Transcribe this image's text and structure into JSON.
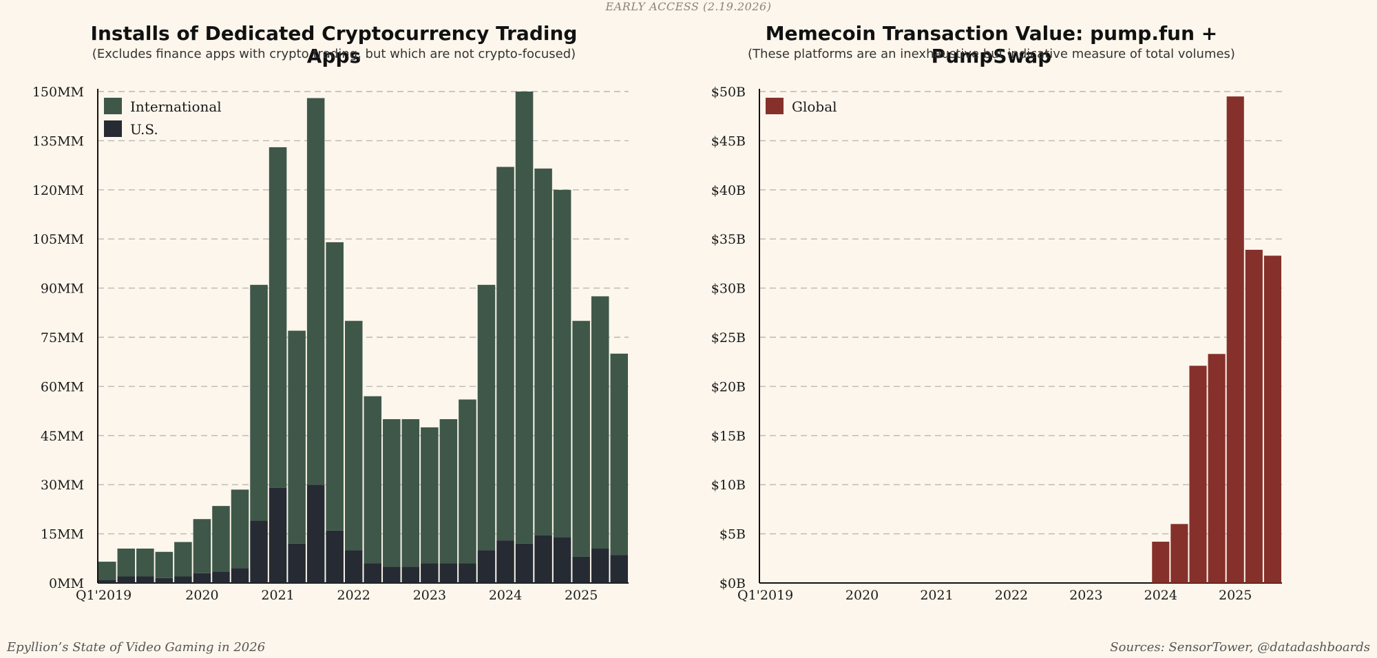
{
  "header": {
    "early_access": "EARLY ACCESS (2.19.2026)"
  },
  "footer": {
    "left": "Epyllion’s State of Video Gaming in 2026",
    "right": "Sources: SensorTower, @datadashboards"
  },
  "colors": {
    "international": "#3e5749",
    "us": "#252a33",
    "global": "#85302b",
    "grid": "#b8b8b0",
    "background": "#fcf6ec"
  },
  "chart_data": [
    {
      "type": "bar",
      "stacked": true,
      "title": "Installs of Dedicated Cryptocurrency Trading Apps",
      "subtitle": "(Excludes finance apps with crypto trading, but which are not crypto-focused)",
      "ylim": [
        0,
        150
      ],
      "yticks": [
        "0MM",
        "15MM",
        "30MM",
        "45MM",
        "60MM",
        "75MM",
        "90MM",
        "105MM",
        "120MM",
        "135MM",
        "150MM"
      ],
      "xtick_labels": [
        "Q1'2019",
        "2020",
        "2021",
        "2022",
        "2023",
        "2024",
        "2025"
      ],
      "legend": {
        "position": "top-left"
      },
      "categories": [
        "Q1 2019",
        "Q2 2019",
        "Q3 2019",
        "Q4 2019",
        "Q1 2020",
        "Q2 2020",
        "Q3 2020",
        "Q4 2020",
        "Q1 2021",
        "Q2 2021",
        "Q3 2021",
        "Q4 2021",
        "Q1 2022",
        "Q2 2022",
        "Q3 2022",
        "Q4 2022",
        "Q1 2023",
        "Q2 2023",
        "Q3 2023",
        "Q4 2023",
        "Q1 2024",
        "Q2 2024",
        "Q3 2024",
        "Q4 2024",
        "Q1 2025",
        "Q2 2025",
        "Q3 2025",
        "Q4 2025"
      ],
      "series": [
        {
          "name": "U.S.",
          "values": [
            1,
            2,
            2,
            1.5,
            2,
            3,
            3.5,
            4.5,
            19,
            29,
            12,
            30,
            16,
            10,
            6,
            5,
            5,
            6,
            6,
            6,
            10,
            13,
            12,
            14.5,
            14,
            8,
            10.5,
            8.5
          ]
        },
        {
          "name": "International",
          "values": [
            5.5,
            8.5,
            8.5,
            8,
            10.5,
            16.5,
            20,
            24,
            72,
            104,
            65,
            118,
            88,
            70,
            51,
            45,
            45,
            41.5,
            44,
            50,
            81,
            114,
            138,
            112,
            106,
            72,
            77,
            61.5
          ]
        }
      ],
      "legend_entries": [
        "International",
        "U.S."
      ]
    },
    {
      "type": "bar",
      "title": "Memecoin Transaction Value: pump.fun + PumpSwap",
      "subtitle": "(These platforms are an inexhaustive but indicative measure of total volumes)",
      "ylim": [
        0,
        50
      ],
      "yticks": [
        "$0B",
        "$5B",
        "$10B",
        "$15B",
        "$20B",
        "$25B",
        "$30B",
        "$35B",
        "$40B",
        "$45B",
        "$50B"
      ],
      "xtick_labels": [
        "Q1'2019",
        "2020",
        "2021",
        "2022",
        "2023",
        "2024",
        "2025"
      ],
      "legend": {
        "position": "top-left"
      },
      "categories": [
        "Q1 2024",
        "Q2 2024",
        "Q3 2024",
        "Q4 2024",
        "Q1 2025",
        "Q2 2025",
        "Q3 2025"
      ],
      "series": [
        {
          "name": "Global",
          "values": [
            4.2,
            6,
            22.1,
            23.3,
            49.5,
            33.9,
            33.3
          ]
        }
      ],
      "legend_entries": [
        "Global"
      ]
    }
  ]
}
